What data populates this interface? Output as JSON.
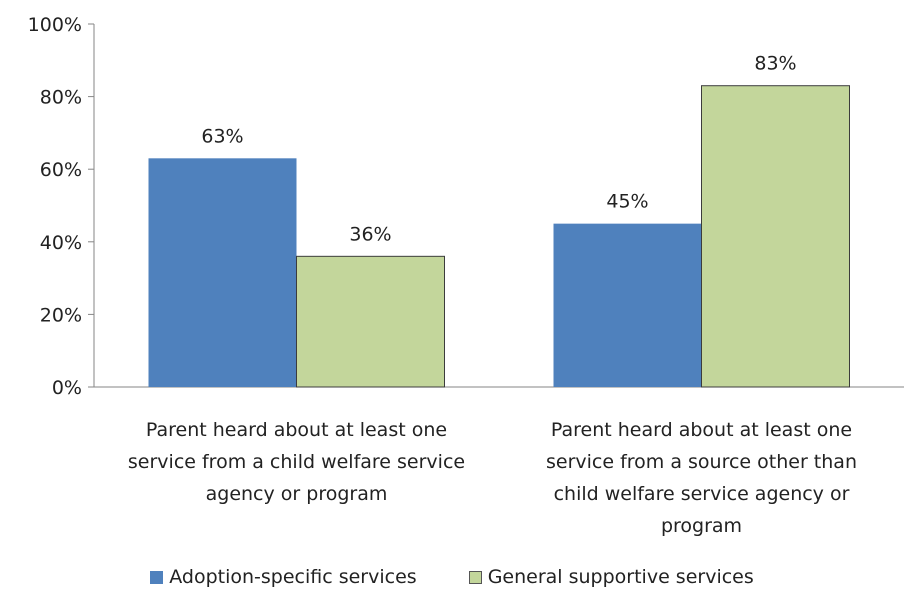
{
  "chart_data": {
    "type": "bar",
    "categories": [
      [
        "Parent heard about  at least one",
        "service from a child welfare service",
        "agency or program"
      ],
      [
        "Parent heard about  at least one",
        "service from a source other than",
        "child welfare service agency or",
        "program"
      ]
    ],
    "series": [
      {
        "name": "Adoption-specific services",
        "values": [
          63,
          45
        ],
        "labels": [
          "63%",
          "45%"
        ],
        "color": "#4f81bd"
      },
      {
        "name": "General supportive services",
        "values": [
          36,
          83
        ],
        "labels": [
          "36%",
          "83%"
        ],
        "color": "#c3d69b"
      }
    ],
    "ylim": [
      0,
      100
    ],
    "yticks": [
      {
        "value": 0,
        "label": "0%"
      },
      {
        "value": 20,
        "label": "20%"
      },
      {
        "value": 40,
        "label": "40%"
      },
      {
        "value": 60,
        "label": "60%"
      },
      {
        "value": 80,
        "label": "80%"
      },
      {
        "value": 100,
        "label": "100%"
      }
    ],
    "grid": false,
    "legend_position": "bottom"
  }
}
